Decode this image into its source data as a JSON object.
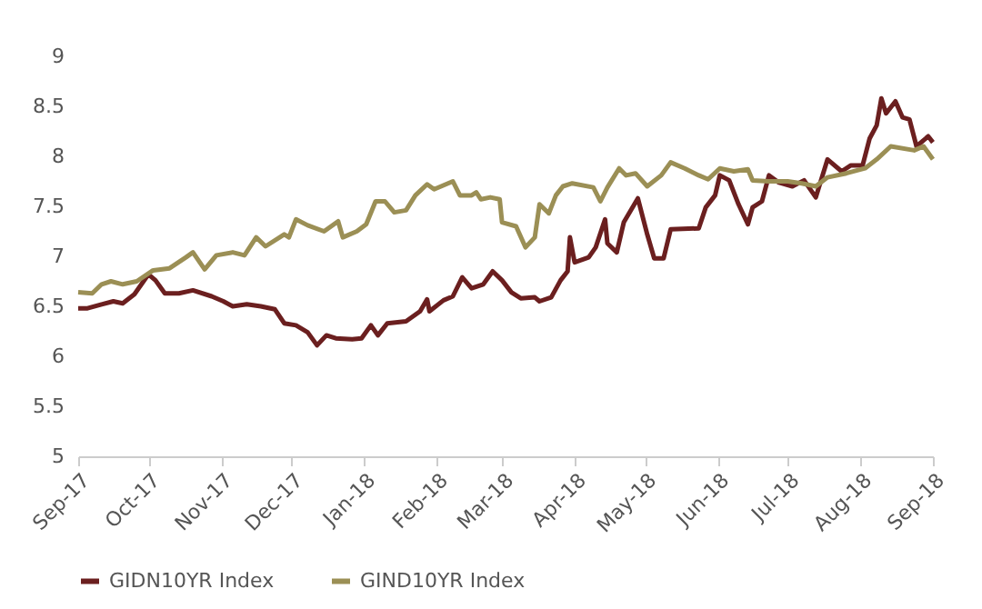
{
  "chart_data": {
    "type": "line",
    "xlim": [
      "2017-09-01",
      "2018-09-01"
    ],
    "xticks": [
      {
        "value": "2017-09-01",
        "label": "Sep-17"
      },
      {
        "value": "2017-10-01",
        "label": "Oct-17"
      },
      {
        "value": "2017-11-01",
        "label": "Nov-17"
      },
      {
        "value": "2017-12-01",
        "label": "Dec-17"
      },
      {
        "value": "2018-01-01",
        "label": "Jan-18"
      },
      {
        "value": "2018-02-01",
        "label": "Feb-18"
      },
      {
        "value": "2018-03-01",
        "label": "Mar-18"
      },
      {
        "value": "2018-04-01",
        "label": "Apr-18"
      },
      {
        "value": "2018-05-01",
        "label": "May-18"
      },
      {
        "value": "2018-06-01",
        "label": "Jun-18"
      },
      {
        "value": "2018-07-01",
        "label": "Jul-18"
      },
      {
        "value": "2018-08-01",
        "label": "Aug-18"
      },
      {
        "value": "2018-09-01",
        "label": "Sep-18"
      }
    ],
    "ylim": [
      5,
      9
    ],
    "yticks": [
      5,
      5.5,
      6,
      6.5,
      7,
      7.5,
      8,
      8.5,
      9
    ],
    "grid": false,
    "legend": "bottom",
    "marker": "none",
    "line_style": "solid",
    "series": [
      {
        "name": "GIDN10YR Index",
        "color": "#6b1f1f",
        "x": [
          "2017-09-01",
          "2017-09-05",
          "2017-09-11",
          "2017-09-16",
          "2017-09-20",
          "2017-09-25",
          "2017-10-01",
          "2017-10-04",
          "2017-10-08",
          "2017-10-14",
          "2017-10-20",
          "2017-10-28",
          "2017-11-02",
          "2017-11-06",
          "2017-11-12",
          "2017-11-18",
          "2017-11-24",
          "2017-11-28",
          "2017-12-03",
          "2017-12-08",
          "2017-12-12",
          "2017-12-16",
          "2017-12-20",
          "2017-12-27",
          "2017-12-31",
          "2018-01-04",
          "2018-01-07",
          "2018-01-11",
          "2018-01-19",
          "2018-01-25",
          "2018-01-28",
          "2018-01-29",
          "2018-02-04",
          "2018-02-08",
          "2018-02-12",
          "2018-02-16",
          "2018-02-21",
          "2018-02-25",
          "2018-03-01",
          "2018-03-05",
          "2018-03-09",
          "2018-03-15",
          "2018-03-17",
          "2018-03-22",
          "2018-03-26",
          "2018-03-29",
          "2018-03-30",
          "2018-04-01",
          "2018-04-07",
          "2018-04-10",
          "2018-04-14",
          "2018-04-15",
          "2018-04-19",
          "2018-04-22",
          "2018-04-28",
          "2018-05-02",
          "2018-05-05",
          "2018-05-09",
          "2018-05-12",
          "2018-05-24",
          "2018-05-27",
          "2018-05-31",
          "2018-06-02",
          "2018-06-06",
          "2018-06-10",
          "2018-06-14",
          "2018-06-16",
          "2018-06-20",
          "2018-06-23",
          "2018-06-27",
          "2018-07-03",
          "2018-07-08",
          "2018-07-13",
          "2018-07-18",
          "2018-07-24",
          "2018-07-28",
          "2018-08-02",
          "2018-08-05",
          "2018-08-08",
          "2018-08-10",
          "2018-08-12",
          "2018-08-16",
          "2018-08-19",
          "2018-08-22",
          "2018-08-25",
          "2018-08-28",
          "2018-08-30",
          "2018-09-01"
        ],
        "values": [
          6.48,
          6.48,
          6.52,
          6.55,
          6.53,
          6.62,
          6.82,
          6.76,
          6.63,
          6.63,
          6.66,
          6.6,
          6.55,
          6.5,
          6.52,
          6.5,
          6.47,
          6.33,
          6.31,
          6.24,
          6.11,
          6.21,
          6.18,
          6.17,
          6.18,
          6.31,
          6.21,
          6.33,
          6.35,
          6.45,
          6.57,
          6.45,
          6.56,
          6.6,
          6.79,
          6.68,
          6.72,
          6.85,
          6.76,
          6.64,
          6.58,
          6.59,
          6.55,
          6.59,
          6.76,
          6.85,
          7.19,
          6.94,
          6.99,
          7.09,
          7.37,
          7.13,
          7.04,
          7.34,
          7.58,
          7.22,
          6.98,
          6.98,
          7.27,
          7.28,
          7.49,
          7.61,
          7.81,
          7.76,
          7.52,
          7.32,
          7.49,
          7.55,
          7.81,
          7.74,
          7.7,
          7.76,
          7.59,
          7.97,
          7.85,
          7.91,
          7.91,
          8.18,
          8.31,
          8.58,
          8.43,
          8.55,
          8.39,
          8.37,
          8.1,
          8.16,
          8.2,
          8.14
        ]
      },
      {
        "name": "GIND10YR Index",
        "color": "#9b8f55",
        "x": [
          "2017-09-01",
          "2017-09-07",
          "2017-09-11",
          "2017-09-15",
          "2017-09-20",
          "2017-09-26",
          "2017-10-03",
          "2017-10-10",
          "2017-10-17",
          "2017-10-20",
          "2017-10-25",
          "2017-10-30",
          "2017-11-06",
          "2017-11-11",
          "2017-11-16",
          "2017-11-20",
          "2017-11-28",
          "2017-11-30",
          "2017-12-03",
          "2017-12-08",
          "2017-12-15",
          "2017-12-21",
          "2017-12-23",
          "2017-12-29",
          "2018-01-02",
          "2018-01-06",
          "2018-01-10",
          "2018-01-14",
          "2018-01-19",
          "2018-01-23",
          "2018-01-28",
          "2018-01-31",
          "2018-02-08",
          "2018-02-11",
          "2018-02-16",
          "2018-02-18",
          "2018-02-20",
          "2018-02-24",
          "2018-02-28",
          "2018-03-01",
          "2018-03-07",
          "2018-03-11",
          "2018-03-15",
          "2018-03-17",
          "2018-03-21",
          "2018-03-24",
          "2018-03-27",
          "2018-03-31",
          "2018-04-09",
          "2018-04-12",
          "2018-04-15",
          "2018-04-20",
          "2018-04-23",
          "2018-04-27",
          "2018-05-02",
          "2018-05-08",
          "2018-05-12",
          "2018-05-18",
          "2018-05-24",
          "2018-05-28",
          "2018-06-02",
          "2018-06-08",
          "2018-06-14",
          "2018-06-16",
          "2018-06-23",
          "2018-07-01",
          "2018-07-07",
          "2018-07-13",
          "2018-07-18",
          "2018-07-26",
          "2018-08-03",
          "2018-08-08",
          "2018-08-14",
          "2018-08-24",
          "2018-08-28",
          "2018-09-01"
        ],
        "values": [
          6.64,
          6.63,
          6.72,
          6.75,
          6.72,
          6.75,
          6.86,
          6.88,
          6.99,
          7.04,
          6.87,
          7.01,
          7.04,
          7.01,
          7.19,
          7.1,
          7.22,
          7.19,
          7.37,
          7.31,
          7.25,
          7.35,
          7.19,
          7.25,
          7.32,
          7.55,
          7.55,
          7.44,
          7.46,
          7.61,
          7.72,
          7.67,
          7.75,
          7.61,
          7.61,
          7.64,
          7.57,
          7.59,
          7.57,
          7.34,
          7.3,
          7.09,
          7.19,
          7.52,
          7.43,
          7.61,
          7.7,
          7.73,
          7.69,
          7.55,
          7.69,
          7.88,
          7.81,
          7.83,
          7.7,
          7.81,
          7.94,
          7.88,
          7.81,
          7.77,
          7.88,
          7.85,
          7.87,
          7.76,
          7.75,
          7.75,
          7.73,
          7.7,
          7.79,
          7.83,
          7.88,
          7.97,
          8.1,
          8.06,
          8.1,
          7.97
        ]
      }
    ]
  }
}
